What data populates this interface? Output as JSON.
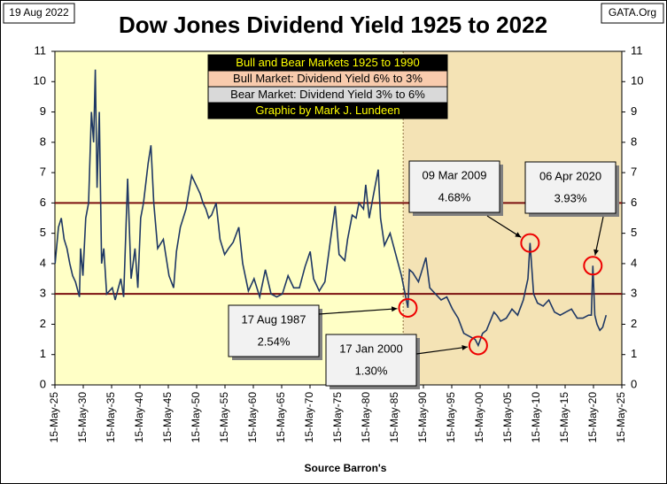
{
  "chart_data": {
    "type": "line",
    "title": "Dow Jones Dividend Yield 1925 to 2022",
    "date_note": "19 Aug 2022",
    "source_note": "GATA.Org",
    "x_label": "Source Barron's",
    "legend_box": [
      "Bull and Bear Markets 1925 to 1990",
      "Bull Market: Dividend Yield 6% to 3%",
      "Bear Market: Dividend Yield 3% to 6%",
      "Graphic by Mark J. Lundeen"
    ],
    "x": [
      1925.4,
      1926,
      1926.5,
      1927,
      1927.5,
      1928,
      1928.5,
      1929,
      1929.7,
      1929.9,
      1930.3,
      1930.8,
      1931.3,
      1931.8,
      1932.2,
      1932.5,
      1932.8,
      1933.2,
      1933.6,
      1934,
      1934.5,
      1935.5,
      1936,
      1937,
      1937.5,
      1938.2,
      1938.8,
      1939.5,
      1940,
      1940.5,
      1941,
      1941.8,
      1942.3,
      1942.8,
      1943.5,
      1944.5,
      1945.5,
      1946.3,
      1946.8,
      1947.5,
      1948.5,
      1949.5,
      1950.5,
      1951,
      1951.5,
      1952,
      1952.5,
      1953,
      1953.8,
      1954.5,
      1955.3,
      1956,
      1956.8,
      1957.8,
      1958.5,
      1959.5,
      1960.5,
      1961.5,
      1962.5,
      1963.5,
      1964.5,
      1965.5,
      1966.5,
      1967.5,
      1968.5,
      1969.5,
      1970.4,
      1971,
      1972,
      1973,
      1974,
      1974.8,
      1975.5,
      1976.5,
      1977,
      1977.8,
      1978.5,
      1979,
      1979.8,
      1980.2,
      1980.8,
      1981.5,
      1982.4,
      1982.8,
      1983.5,
      1984.5,
      1985.5,
      1986.5,
      1987.63,
      1987.9,
      1988.5,
      1989.5,
      1990,
      1990.8,
      1991.5,
      1992.5,
      1993.5,
      1994.5,
      1995.5,
      1996.5,
      1997.5,
      1998.5,
      1999.5,
      2000.04,
      2000.8,
      2001.5,
      2002.8,
      2003.3,
      2004,
      2005,
      2006,
      2007,
      2008,
      2008.8,
      2009.18,
      2009.8,
      2010.5,
      2011.5,
      2012.5,
      2013.5,
      2014.5,
      2015.5,
      2016.5,
      2017.5,
      2018.5,
      2019.5,
      2020,
      2020.26,
      2020.6,
      2021,
      2021.5,
      2022,
      2022.6
    ],
    "series": [
      {
        "color": "#1f3864",
        "values": [
          4.0,
          5.2,
          5.5,
          4.8,
          4.5,
          4.0,
          3.6,
          3.4,
          2.9,
          4.5,
          3.6,
          5.5,
          6.0,
          9.0,
          8.0,
          10.4,
          6.5,
          9.0,
          4.0,
          4.5,
          3.0,
          3.2,
          2.8,
          3.5,
          2.9,
          6.8,
          3.5,
          4.5,
          3.2,
          5.5,
          6.0,
          7.3,
          7.9,
          6.0,
          4.5,
          4.8,
          3.6,
          3.2,
          4.4,
          5.2,
          5.8,
          6.9,
          6.5,
          6.3,
          6.0,
          5.8,
          5.5,
          5.6,
          6.0,
          4.8,
          4.3,
          4.5,
          4.7,
          5.2,
          4.0,
          3.1,
          3.5,
          2.9,
          3.8,
          3.0,
          2.9,
          3.0,
          3.6,
          3.2,
          3.2,
          3.9,
          4.4,
          3.5,
          3.1,
          3.4,
          4.8,
          5.9,
          4.3,
          4.1,
          4.8,
          5.6,
          5.5,
          6.0,
          5.8,
          6.6,
          5.5,
          6.2,
          7.1,
          5.5,
          4.6,
          5.0,
          4.3,
          3.6,
          2.54,
          3.8,
          3.7,
          3.4,
          3.7,
          4.2,
          3.2,
          3.0,
          2.8,
          2.9,
          2.5,
          2.2,
          1.7,
          1.6,
          1.5,
          1.3,
          1.7,
          1.8,
          2.4,
          2.3,
          2.1,
          2.2,
          2.5,
          2.3,
          2.8,
          3.5,
          4.68,
          3.0,
          2.7,
          2.6,
          2.8,
          2.4,
          2.3,
          2.4,
          2.5,
          2.2,
          2.2,
          2.3,
          2.3,
          3.93,
          2.3,
          2.0,
          1.8,
          1.9,
          2.3
        ]
      }
    ],
    "xlim": [
      1925.37,
      2025.37
    ],
    "xticks": [
      {
        "value": 1925.37,
        "label": "15-May-25"
      },
      {
        "value": 1930.37,
        "label": "15-May-30"
      },
      {
        "value": 1935.37,
        "label": "15-May-35"
      },
      {
        "value": 1940.37,
        "label": "15-May-40"
      },
      {
        "value": 1945.37,
        "label": "15-May-45"
      },
      {
        "value": 1950.37,
        "label": "15-May-50"
      },
      {
        "value": 1955.37,
        "label": "15-May-55"
      },
      {
        "value": 1960.37,
        "label": "15-May-60"
      },
      {
        "value": 1965.37,
        "label": "15-May-65"
      },
      {
        "value": 1970.37,
        "label": "15-May-70"
      },
      {
        "value": 1975.37,
        "label": "15-May-75"
      },
      {
        "value": 1980.37,
        "label": "15-May-80"
      },
      {
        "value": 1985.37,
        "label": "15-May-85"
      },
      {
        "value": 1990.37,
        "label": "15-May-90"
      },
      {
        "value": 1995.37,
        "label": "15-May-95"
      },
      {
        "value": 2000.37,
        "label": "15-May-00"
      },
      {
        "value": 2005.37,
        "label": "15-May-05"
      },
      {
        "value": 2010.37,
        "label": "15-May-10"
      },
      {
        "value": 2015.37,
        "label": "15-May-15"
      },
      {
        "value": 2020.37,
        "label": "15-May-20"
      },
      {
        "value": 2025.37,
        "label": "15-May-25"
      }
    ],
    "ylim": [
      0,
      11
    ],
    "yticks": [
      0,
      1,
      2,
      3,
      4,
      5,
      6,
      7,
      8,
      9,
      10,
      11
    ],
    "reference_lines": [
      3,
      6
    ],
    "reference_color": "#7b1010",
    "shaded_from": 1986.8,
    "annotations": [
      {
        "date": "17 Aug 1987",
        "value": 2.54,
        "value_label": "2.54%",
        "x": 1987.63
      },
      {
        "date": "17 Jan 2000",
        "value": 1.3,
        "value_label": "1.30%",
        "x": 2000.04
      },
      {
        "date": "09 Mar 2009",
        "value": 4.68,
        "value_label": "4.68%",
        "x": 2009.18
      },
      {
        "date": "06 Apr 2020",
        "value": 3.93,
        "value_label": "3.93%",
        "x": 2020.26
      }
    ]
  }
}
